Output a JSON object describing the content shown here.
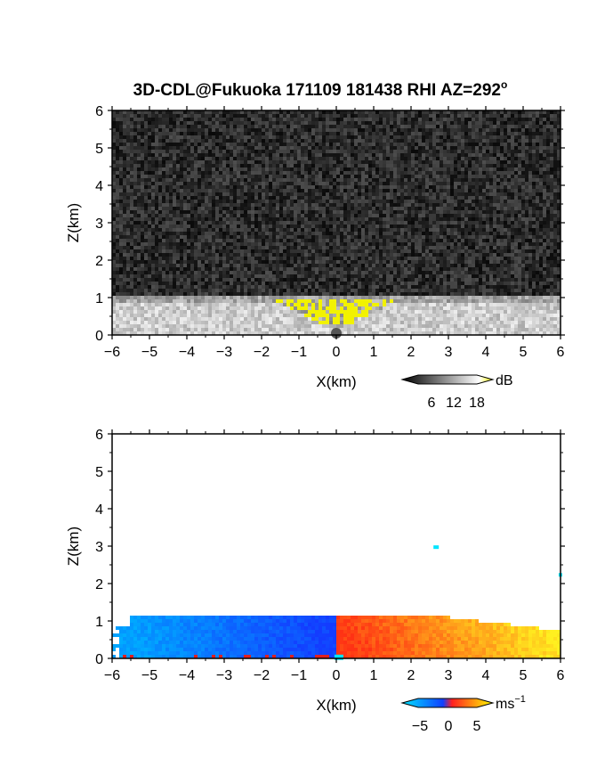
{
  "figure": {
    "title": "3D-CDL@Fukuoka 171109 181438 RHI AZ=292",
    "title_superscript": "o"
  },
  "chart_data": [
    {
      "type": "heatmap",
      "name": "reflectivity",
      "xlabel": "X(km)",
      "ylabel": "Z(km)",
      "xlim": [
        -6,
        6
      ],
      "ylim": [
        0,
        6
      ],
      "xticks": [
        "−6",
        "−5",
        "−4",
        "−3",
        "−2",
        "−1",
        "0",
        "1",
        "2",
        "3",
        "4",
        "5",
        "6"
      ],
      "yticks": [
        "0",
        "1",
        "2",
        "3",
        "4",
        "5",
        "6"
      ],
      "echo_top_km": 1.05,
      "colorbar": {
        "unit": "dB",
        "ticks": [
          "6",
          "12",
          "18"
        ],
        "range": [
          0,
          20
        ],
        "colors": [
          "#000000",
          "#ffffff",
          "#ffff00"
        ]
      }
    },
    {
      "type": "heatmap",
      "name": "doppler_velocity",
      "xlabel": "X(km)",
      "ylabel": "Z(km)",
      "xlim": [
        -6,
        6
      ],
      "ylim": [
        0,
        6
      ],
      "xticks": [
        "−6",
        "−5",
        "−4",
        "−3",
        "−2",
        "−1",
        "0",
        "1",
        "2",
        "3",
        "4",
        "5",
        "6"
      ],
      "yticks": [
        "0",
        "1",
        "2",
        "3",
        "4",
        "5",
        "6"
      ],
      "echo_top_km": 1.1,
      "negative_side": "x<0",
      "positive_side": "x>0",
      "colorbar": {
        "unit": "ms",
        "unit_superscript": "−1",
        "ticks": [
          "−5",
          "0",
          "5"
        ],
        "range": [
          -7,
          7
        ],
        "colors": [
          "#00e5ff",
          "#1040ff",
          "#ff2020",
          "#ffff00"
        ]
      }
    }
  ]
}
